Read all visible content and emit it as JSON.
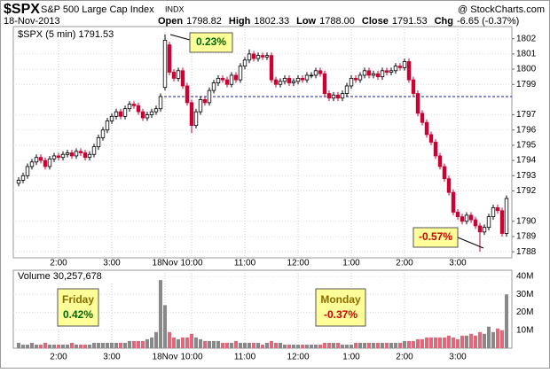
{
  "chart_data": {
    "type": "candlestick",
    "symbol": "$SPX",
    "name": "S&P 500 Large Cap Index",
    "exchange": "INDX",
    "source": "@ StockCharts.com",
    "date": "18-Nov-2013",
    "quote": [
      {
        "label": "Open",
        "text": "1798.82"
      },
      {
        "label": "High",
        "text": "1802.33"
      },
      {
        "label": "Low",
        "text": "1788.00"
      },
      {
        "label": "Close",
        "text": "1791.53"
      },
      {
        "label": "Chg",
        "text": "-6.65 (-0.37%)"
      }
    ],
    "legend": "$SPX (5 min) 1791.53",
    "volume_legend": "Volume 30,257,678",
    "annotations": {
      "peak": "0.23%",
      "trough": "-0.57%",
      "friday_label": "Friday",
      "friday_change": "0.42%",
      "monday_label": "Monday",
      "monday_change": "-0.37%"
    },
    "up_color": "#ffffff",
    "down_color": "#cc0033",
    "volume_up_color": "#888888",
    "volume_down_color": "#e0687a",
    "reference_color": "#1a1aa6",
    "reference_line": 1798.2,
    "grid": true,
    "categories": [
      null,
      null,
      null,
      null,
      null,
      null,
      null,
      null,
      null,
      "2:00",
      null,
      null,
      null,
      null,
      null,
      null,
      null,
      null,
      null,
      null,
      null,
      "3:00",
      null,
      null,
      null,
      null,
      null,
      null,
      null,
      null,
      null,
      null,
      null,
      "18Nov",
      null,
      null,
      null,
      null,
      null,
      "10:00",
      null,
      null,
      null,
      null,
      null,
      null,
      null,
      null,
      null,
      null,
      null,
      "11:00",
      null,
      null,
      null,
      null,
      null,
      null,
      null,
      null,
      null,
      null,
      null,
      "12:00",
      null,
      null,
      null,
      null,
      null,
      null,
      null,
      null,
      null,
      null,
      null,
      "1:00",
      null,
      null,
      null,
      null,
      null,
      null,
      null,
      null,
      null,
      null,
      null,
      "2:00",
      null,
      null,
      null,
      null,
      null,
      null,
      null,
      null,
      null,
      null,
      null,
      "3:00",
      null,
      null,
      null,
      null,
      null,
      null,
      null,
      null,
      null,
      null,
      null
    ],
    "open": [
      1792.5,
      1792.7,
      1793.0,
      1793.6,
      1793.9,
      1794.2,
      1794.0,
      1793.6,
      1794.1,
      1794.3,
      1794.2,
      1794.4,
      1794.5,
      1794.3,
      1794.6,
      1794.5,
      1794.2,
      1794.4,
      1794.9,
      1795.5,
      1796.0,
      1796.6,
      1796.9,
      1797.2,
      1796.9,
      1797.4,
      1797.7,
      1797.6,
      1797.2,
      1796.8,
      1797.0,
      1797.2,
      1797.4,
      1798.8,
      1801.6,
      1799.8,
      1799.4,
      1799.9,
      1798.9,
      1797.8,
      1796.3,
      1797.2,
      1798.0,
      1797.8,
      1798.6,
      1799.1,
      1799.4,
      1799.3,
      1799.0,
      1799.6,
      1799.3,
      1800.2,
      1800.6,
      1801.0,
      1800.7,
      1800.9,
      1800.8,
      1800.9,
      1799.3,
      1799.0,
      1799.2,
      1799.4,
      1799.1,
      1799.2,
      1799.4,
      1799.3,
      1799.6,
      1799.6,
      1799.9,
      1799.7,
      1798.4,
      1798.1,
      1798.3,
      1798.1,
      1798.4,
      1798.9,
      1799.4,
      1799.3,
      1799.6,
      1799.9,
      1799.6,
      1799.7,
      1799.5,
      1799.9,
      1799.8,
      1799.9,
      1800.2,
      1800.1,
      1800.5,
      1799.3,
      1798.4,
      1797.1,
      1796.5,
      1795.7,
      1795.2,
      1794.3,
      1793.6,
      1792.8,
      1791.9,
      1790.6,
      1790.3,
      1790.0,
      1790.4,
      1790.1,
      1789.7,
      1789.3,
      1789.6,
      1790.3,
      1790.9,
      1790.7,
      1789.2
    ],
    "high": [
      1792.9,
      1793.2,
      1793.8,
      1794.1,
      1794.4,
      1794.4,
      1794.2,
      1794.3,
      1794.5,
      1794.5,
      1794.6,
      1794.7,
      1794.7,
      1794.8,
      1794.8,
      1794.7,
      1794.6,
      1795.1,
      1795.7,
      1796.2,
      1796.8,
      1797.1,
      1797.4,
      1797.4,
      1797.6,
      1797.9,
      1797.9,
      1797.8,
      1797.4,
      1797.2,
      1797.4,
      1797.6,
      1798.4,
      1802.3,
      1801.8,
      1800.0,
      1800.1,
      1800.1,
      1799.1,
      1798.0,
      1797.4,
      1798.2,
      1798.2,
      1798.8,
      1799.3,
      1799.6,
      1799.6,
      1799.5,
      1799.8,
      1799.8,
      1800.4,
      1800.8,
      1801.3,
      1801.2,
      1801.1,
      1801.1,
      1801.1,
      1801.1,
      1799.5,
      1799.4,
      1799.6,
      1799.6,
      1799.4,
      1799.6,
      1799.6,
      1799.8,
      1799.8,
      1800.1,
      1800.1,
      1799.9,
      1798.6,
      1798.5,
      1798.5,
      1798.6,
      1799.1,
      1799.6,
      1799.6,
      1799.8,
      1800.1,
      1800.1,
      1799.9,
      1799.9,
      1800.1,
      1800.1,
      1800.1,
      1800.4,
      1800.4,
      1800.7,
      1800.7,
      1799.5,
      1798.6,
      1797.3,
      1796.7,
      1795.9,
      1795.4,
      1794.5,
      1793.8,
      1793.0,
      1792.1,
      1790.8,
      1790.5,
      1790.6,
      1790.6,
      1790.3,
      1789.9,
      1789.8,
      1790.5,
      1791.1,
      1791.1,
      1790.9,
      1791.7
    ],
    "low": [
      1792.3,
      1792.5,
      1792.8,
      1793.4,
      1793.7,
      1793.8,
      1793.4,
      1793.4,
      1793.9,
      1794.0,
      1794.0,
      1794.2,
      1794.1,
      1794.1,
      1794.3,
      1794.0,
      1794.0,
      1794.2,
      1794.7,
      1795.3,
      1795.8,
      1796.4,
      1796.7,
      1796.7,
      1796.7,
      1797.2,
      1797.4,
      1797.0,
      1796.6,
      1796.6,
      1796.8,
      1797.0,
      1797.2,
      1798.6,
      1799.6,
      1799.2,
      1799.2,
      1798.7,
      1797.6,
      1795.8,
      1796.1,
      1797.0,
      1797.6,
      1797.6,
      1798.4,
      1798.9,
      1799.1,
      1798.8,
      1798.8,
      1799.1,
      1799.1,
      1800.0,
      1800.4,
      1800.5,
      1800.5,
      1800.6,
      1800.6,
      1799.1,
      1798.8,
      1798.8,
      1799.0,
      1798.9,
      1798.9,
      1799.0,
      1799.1,
      1799.1,
      1799.4,
      1799.4,
      1799.5,
      1798.2,
      1797.9,
      1797.9,
      1797.9,
      1797.9,
      1798.2,
      1798.7,
      1799.1,
      1799.1,
      1799.4,
      1799.4,
      1799.4,
      1799.3,
      1799.3,
      1799.6,
      1799.6,
      1799.7,
      1799.9,
      1799.9,
      1799.1,
      1798.2,
      1796.9,
      1796.3,
      1795.5,
      1795.0,
      1794.1,
      1793.4,
      1792.6,
      1791.7,
      1790.4,
      1790.1,
      1789.8,
      1789.8,
      1789.9,
      1789.5,
      1788.0,
      1789.1,
      1789.4,
      1790.1,
      1790.5,
      1789.0,
      1789.0
    ],
    "close": [
      1792.7,
      1793.0,
      1793.6,
      1793.9,
      1794.2,
      1794.0,
      1793.6,
      1794.1,
      1794.3,
      1794.2,
      1794.4,
      1794.5,
      1794.3,
      1794.6,
      1794.5,
      1794.2,
      1794.4,
      1794.9,
      1795.5,
      1796.0,
      1796.6,
      1796.9,
      1797.2,
      1796.9,
      1797.4,
      1797.7,
      1797.6,
      1797.2,
      1796.8,
      1797.0,
      1797.2,
      1797.4,
      1798.2,
      1801.9,
      1799.8,
      1799.4,
      1799.9,
      1798.9,
      1797.8,
      1796.3,
      1797.2,
      1798.0,
      1797.8,
      1798.6,
      1799.1,
      1799.4,
      1799.3,
      1799.0,
      1799.6,
      1799.3,
      1800.2,
      1800.6,
      1801.0,
      1800.7,
      1800.9,
      1800.8,
      1800.9,
      1799.3,
      1799.0,
      1799.2,
      1799.4,
      1799.1,
      1799.2,
      1799.4,
      1799.3,
      1799.6,
      1799.6,
      1799.9,
      1799.7,
      1798.4,
      1798.1,
      1798.3,
      1798.1,
      1798.4,
      1798.9,
      1799.4,
      1799.3,
      1799.6,
      1799.9,
      1799.6,
      1799.7,
      1799.5,
      1799.9,
      1799.8,
      1799.9,
      1800.2,
      1800.1,
      1800.5,
      1799.3,
      1798.4,
      1797.1,
      1796.5,
      1795.7,
      1795.2,
      1794.3,
      1793.6,
      1792.8,
      1791.9,
      1790.6,
      1790.3,
      1790.0,
      1790.4,
      1790.1,
      1789.7,
      1789.3,
      1789.6,
      1790.3,
      1790.9,
      1790.7,
      1789.2,
      1791.5
    ],
    "volume": [
      3,
      2,
      2,
      3,
      2,
      2,
      3,
      2,
      2,
      2,
      2,
      2,
      3,
      2,
      2,
      2,
      2,
      3,
      3,
      3,
      3,
      3,
      3,
      3,
      3,
      4,
      4,
      4,
      4,
      5,
      6,
      9,
      38,
      24,
      9,
      6,
      5,
      6,
      6,
      8,
      6,
      5,
      4,
      4,
      4,
      4,
      3,
      3,
      3,
      4,
      3,
      3,
      3,
      3,
      3,
      2,
      3,
      4,
      3,
      3,
      2,
      2,
      2,
      2,
      2,
      2,
      2,
      2,
      2,
      3,
      3,
      3,
      3,
      2,
      2,
      2,
      3,
      3,
      3,
      3,
      3,
      3,
      3,
      3,
      3,
      3,
      3,
      4,
      4,
      4,
      5,
      5,
      6,
      6,
      6,
      6,
      6,
      7,
      6,
      5,
      7,
      7,
      8,
      7,
      9,
      8,
      12,
      9,
      11,
      10,
      30
    ],
    "ylim": [
      1787.6,
      1802.8
    ],
    "yticks": [
      1788,
      1789,
      1790,
      1792,
      1793,
      1794,
      1795,
      1796,
      1797,
      1799,
      1800,
      1801,
      1802
    ],
    "vlim": [
      0,
      43.5
    ],
    "vticks": [
      {
        "value": 10,
        "label": "10M"
      },
      {
        "value": 20,
        "label": "20M"
      },
      {
        "value": 30,
        "label": "30M"
      },
      {
        "value": 40,
        "label": "40M"
      }
    ]
  }
}
